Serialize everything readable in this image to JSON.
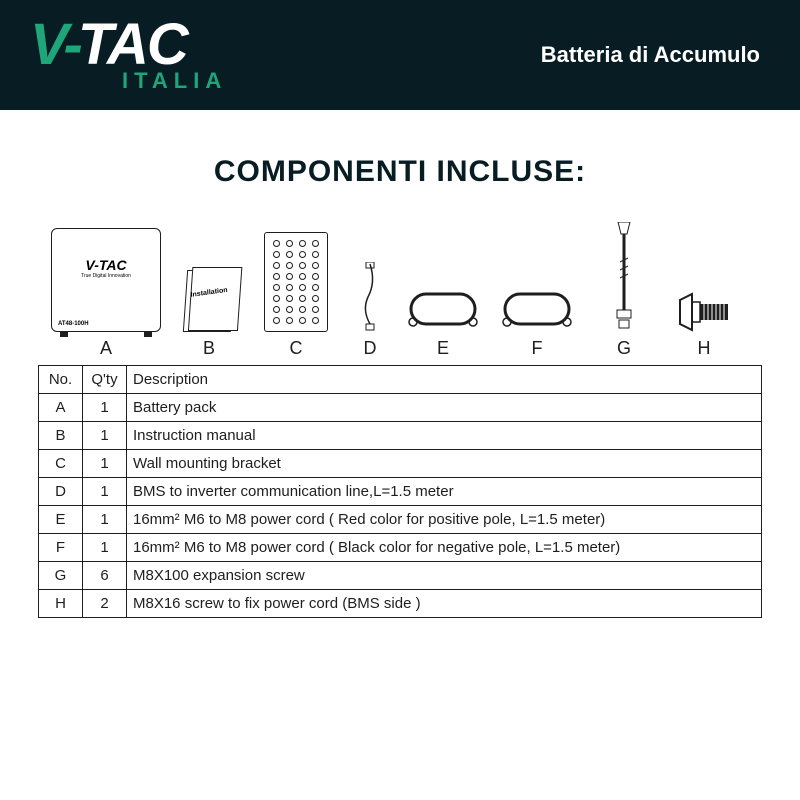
{
  "header": {
    "logo_v": "V-",
    "logo_tac": "TAC",
    "logo_italia": "ITALIA",
    "title": "Batteria di Accumulo",
    "bg_color": "#081c24",
    "accent_color": "#1fa57a",
    "text_color": "#ffffff"
  },
  "section_title": "COMPONENTI INCLUSE:",
  "illustrations": {
    "a_label": "A",
    "b_label": "B",
    "c_label": "C",
    "d_label": "D",
    "e_label": "E",
    "f_label": "F",
    "g_label": "G",
    "h_label": "H",
    "battery_logo": "V-TAC",
    "battery_sub": "True Digital Innovation",
    "battery_model": "AT48-100H",
    "manual_text": "Installation"
  },
  "table": {
    "headers": {
      "no": "No.",
      "qty": "Q'ty",
      "desc": "Description"
    },
    "rows": [
      {
        "no": "A",
        "qty": "1",
        "desc": "Battery pack"
      },
      {
        "no": "B",
        "qty": "1",
        "desc": "Instruction manual"
      },
      {
        "no": "C",
        "qty": "1",
        "desc": "Wall mounting bracket"
      },
      {
        "no": "D",
        "qty": "1",
        "desc": "BMS to inverter communication line,L=1.5 meter"
      },
      {
        "no": "E",
        "qty": "1",
        "desc": "16mm² M6 to M8 power cord ( Red color for positive pole, L=1.5 meter)"
      },
      {
        "no": "F",
        "qty": "1",
        "desc": "16mm² M6 to M8 power cord ( Black color for negative pole, L=1.5 meter)"
      },
      {
        "no": "G",
        "qty": "6",
        "desc": "M8X100 expansion screw"
      },
      {
        "no": "H",
        "qty": "2",
        "desc": "M8X16 screw to fix power cord (BMS side )"
      }
    ],
    "border_color": "#1e1e1e",
    "font_size": 15
  }
}
